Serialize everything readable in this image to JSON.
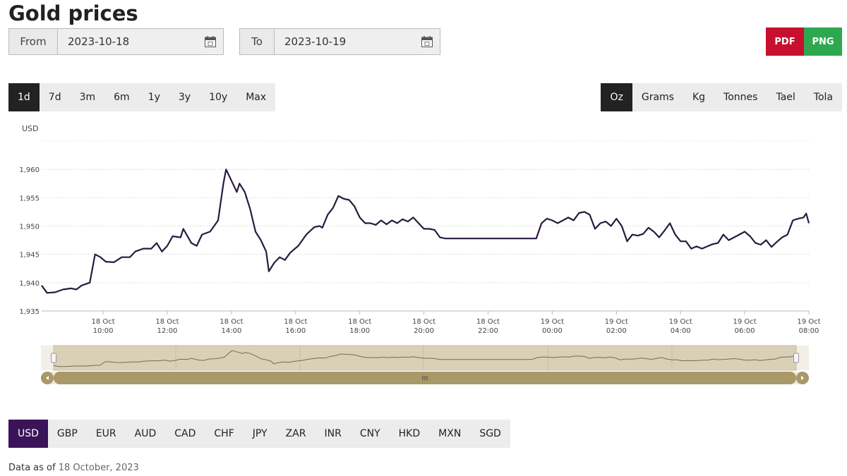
{
  "title": "Gold prices",
  "from": {
    "label": "From",
    "value": "2023-10-18"
  },
  "to": {
    "label": "To",
    "value": "2023-10-19"
  },
  "exports": [
    {
      "label": "PDF",
      "color": "#c8102e"
    },
    {
      "label": "PNG",
      "color": "#2ea84f"
    }
  ],
  "ranges": [
    "1d",
    "7d",
    "3m",
    "6m",
    "1y",
    "3y",
    "10y",
    "Max"
  ],
  "selected_range": 0,
  "units": [
    "Oz",
    "Grams",
    "Kg",
    "Tonnes",
    "Tael",
    "Tola"
  ],
  "selected_unit": 0,
  "currencies": [
    "USD",
    "GBP",
    "EUR",
    "AUD",
    "CAD",
    "CHF",
    "JPY",
    "ZAR",
    "INR",
    "CNY",
    "HKD",
    "MXN",
    "SGD"
  ],
  "selected_currency": 0,
  "footer": {
    "prefix": "Data as of",
    "date": "18 October, 2023"
  },
  "chart_data": {
    "type": "line",
    "y_label": "USD",
    "color": "#2a1a3f",
    "grid": true,
    "x": [
      "18 Oct 08:05",
      "18 Oct 08:15",
      "18 Oct 08:30",
      "18 Oct 08:45",
      "18 Oct 09:00",
      "18 Oct 09:10",
      "18 Oct 09:20",
      "18 Oct 09:35",
      "18 Oct 09:45",
      "18 Oct 09:55",
      "18 Oct 10:05",
      "18 Oct 10:20",
      "18 Oct 10:35",
      "18 Oct 10:50",
      "18 Oct 11:00",
      "18 Oct 11:15",
      "18 Oct 11:30",
      "18 Oct 11:40",
      "18 Oct 11:50",
      "18 Oct 12:00",
      "18 Oct 12:10",
      "18 Oct 12:25",
      "18 Oct 12:30",
      "18 Oct 12:45",
      "18 Oct 12:55",
      "18 Oct 13:05",
      "18 Oct 13:20",
      "18 Oct 13:35",
      "18 Oct 13:45",
      "18 Oct 13:50",
      "18 Oct 14:00",
      "18 Oct 14:10",
      "18 Oct 14:15",
      "18 Oct 14:25",
      "18 Oct 14:35",
      "18 Oct 14:45",
      "18 Oct 14:55",
      "18 Oct 15:05",
      "18 Oct 15:10",
      "18 Oct 15:20",
      "18 Oct 15:30",
      "18 Oct 15:40",
      "18 Oct 15:50",
      "18 Oct 16:05",
      "18 Oct 16:20",
      "18 Oct 16:35",
      "18 Oct 16:45",
      "18 Oct 16:50",
      "18 Oct 17:00",
      "18 Oct 17:10",
      "18 Oct 17:20",
      "18 Oct 17:30",
      "18 Oct 17:40",
      "18 Oct 17:50",
      "18 Oct 18:00",
      "18 Oct 18:10",
      "18 Oct 18:20",
      "18 Oct 18:30",
      "18 Oct 18:40",
      "18 Oct 18:50",
      "18 Oct 19:00",
      "18 Oct 19:10",
      "18 Oct 19:20",
      "18 Oct 19:30",
      "18 Oct 19:40",
      "18 Oct 19:50",
      "18 Oct 20:00",
      "18 Oct 20:10",
      "18 Oct 20:20",
      "18 Oct 20:30",
      "18 Oct 20:40",
      "18 Oct 23:30",
      "18 Oct 23:40",
      "18 Oct 23:50",
      "19 Oct 00:00",
      "19 Oct 00:10",
      "19 Oct 00:20",
      "19 Oct 00:30",
      "19 Oct 00:40",
      "19 Oct 00:50",
      "19 Oct 01:00",
      "19 Oct 01:10",
      "19 Oct 01:20",
      "19 Oct 01:30",
      "19 Oct 01:40",
      "19 Oct 01:50",
      "19 Oct 02:00",
      "19 Oct 02:10",
      "19 Oct 02:20",
      "19 Oct 02:30",
      "19 Oct 02:40",
      "19 Oct 02:50",
      "19 Oct 03:00",
      "19 Oct 03:10",
      "19 Oct 03:20",
      "19 Oct 03:30",
      "19 Oct 03:40",
      "19 Oct 03:50",
      "19 Oct 04:00",
      "19 Oct 04:10",
      "19 Oct 04:20",
      "19 Oct 04:30",
      "19 Oct 04:40",
      "19 Oct 04:50",
      "19 Oct 05:00",
      "19 Oct 05:10",
      "19 Oct 05:20",
      "19 Oct 05:30",
      "19 Oct 05:40",
      "19 Oct 05:50",
      "19 Oct 06:00",
      "19 Oct 06:10",
      "19 Oct 06:20",
      "19 Oct 06:30",
      "19 Oct 06:40",
      "19 Oct 06:50",
      "19 Oct 07:00",
      "19 Oct 07:10",
      "19 Oct 07:20",
      "19 Oct 07:30",
      "19 Oct 07:40",
      "19 Oct 07:50",
      "19 Oct 07:55",
      "19 Oct 08:00"
    ],
    "values": [
      1939.5,
      1938.2,
      1938.3,
      1938.8,
      1939,
      1938.8,
      1939.5,
      1940,
      1945,
      1944.5,
      1943.7,
      1943.6,
      1944.5,
      1944.5,
      1945.5,
      1946,
      1946,
      1947,
      1945.5,
      1946.5,
      1948.2,
      1948,
      1949.5,
      1947,
      1946.5,
      1948.5,
      1949,
      1951,
      1957.5,
      1960,
      1958,
      1956,
      1957.5,
      1956,
      1953,
      1949,
      1947.5,
      1945.5,
      1942,
      1943.5,
      1944.5,
      1944,
      1945.3,
      1946.5,
      1948.5,
      1949.8,
      1950,
      1949.7,
      1952,
      1953.2,
      1955.3,
      1954.8,
      1954.6,
      1953.5,
      1951.5,
      1950.5,
      1950.5,
      1950.2,
      1951,
      1950.3,
      1951,
      1950.5,
      1951.2,
      1950.8,
      1951.5,
      1950.5,
      1949.5,
      1949.5,
      1949.3,
      1948,
      1947.8,
      1947.8,
      1950.5,
      1951.3,
      1951,
      1950.5,
      1951,
      1951.5,
      1951,
      1952.3,
      1952.5,
      1952,
      1949.5,
      1950.5,
      1950.8,
      1950,
      1951.3,
      1950,
      1947.3,
      1948.5,
      1948.3,
      1948.6,
      1949.7,
      1949,
      1948,
      1949.2,
      1950.5,
      1948.5,
      1947.3,
      1947.3,
      1946,
      1946.4,
      1946,
      1946.4,
      1946.8,
      1947,
      1948.5,
      1947.5,
      1948,
      1948.5,
      1949,
      1948.2,
      1947,
      1946.7,
      1947.5,
      1946.3,
      1947.2,
      1948,
      1948.5,
      1951,
      1951.3,
      1951.5,
      1952.2,
      1950.5
    ],
    "xlim": [
      "18 Oct 08:05",
      "19 Oct 08:00"
    ],
    "xticks": [
      {
        "day": "18 Oct",
        "time": "10:00"
      },
      {
        "day": "18 Oct",
        "time": "12:00"
      },
      {
        "day": "18 Oct",
        "time": "14:00"
      },
      {
        "day": "18 Oct",
        "time": "16:00"
      },
      {
        "day": "18 Oct",
        "time": "18:00"
      },
      {
        "day": "18 Oct",
        "time": "20:00"
      },
      {
        "day": "18 Oct",
        "time": "22:00"
      },
      {
        "day": "19 Oct",
        "time": "00:00"
      },
      {
        "day": "19 Oct",
        "time": "02:00"
      },
      {
        "day": "19 Oct",
        "time": "04:00"
      },
      {
        "day": "19 Oct",
        "time": "06:00"
      },
      {
        "day": "19 Oct",
        "time": "08:00"
      }
    ],
    "ylim": [
      1935,
      1965
    ],
    "yticks": [
      {
        "value": 1935,
        "label": "1,935"
      },
      {
        "value": 1940,
        "label": "1,940"
      },
      {
        "value": 1945,
        "label": "1,945"
      },
      {
        "value": 1950,
        "label": "1,950"
      },
      {
        "value": 1955,
        "label": "1,955"
      },
      {
        "value": 1960,
        "label": "1,960"
      }
    ]
  }
}
